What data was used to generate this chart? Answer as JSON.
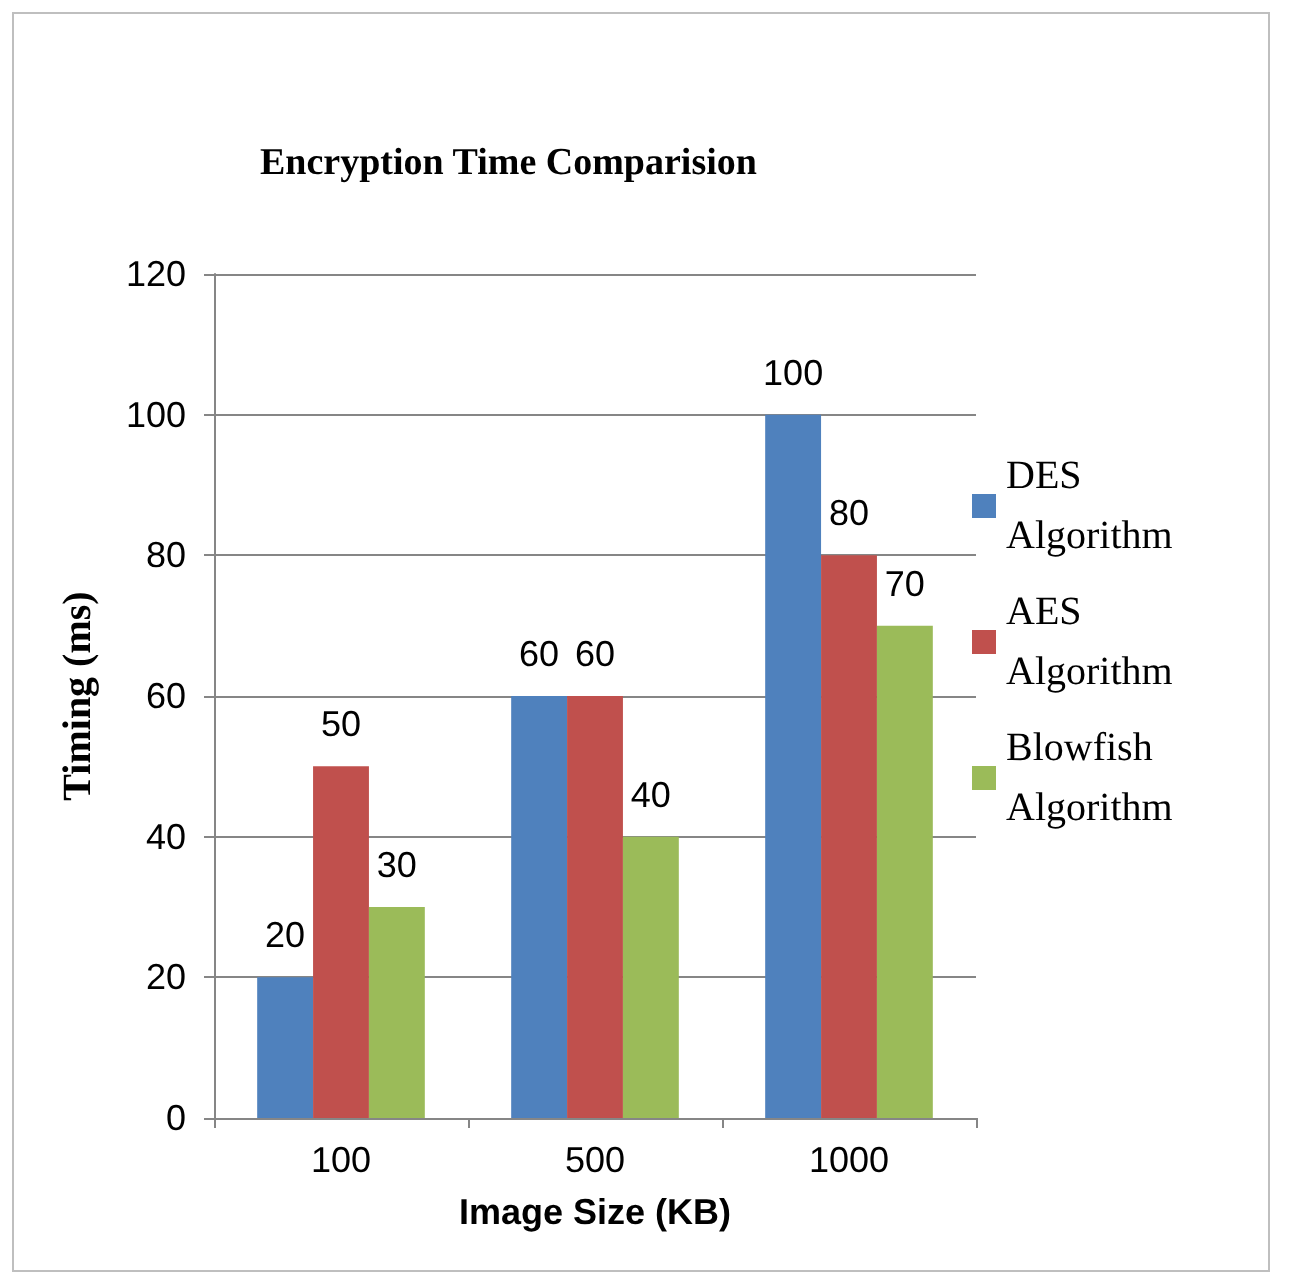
{
  "chart_data": {
    "type": "bar",
    "title": "Encryption Time Comparision",
    "xlabel": "Image Size (KB)",
    "ylabel": "Timing (ms)",
    "categories": [
      "100",
      "500",
      "1000"
    ],
    "series": [
      {
        "name": "DES Algorithm",
        "color": "#4f81bd",
        "values": [
          20,
          60,
          100
        ]
      },
      {
        "name": "AES Algorithm",
        "color": "#c0504d",
        "values": [
          50,
          60,
          80
        ]
      },
      {
        "name": "Blowfish Algorithm",
        "color": "#9bbb59",
        "values": [
          30,
          40,
          70
        ]
      }
    ],
    "ylim": [
      0,
      120
    ],
    "yticks": [
      0,
      20,
      40,
      60,
      80,
      100,
      120
    ],
    "grid": "y",
    "legend": "right",
    "data_labels": true
  }
}
